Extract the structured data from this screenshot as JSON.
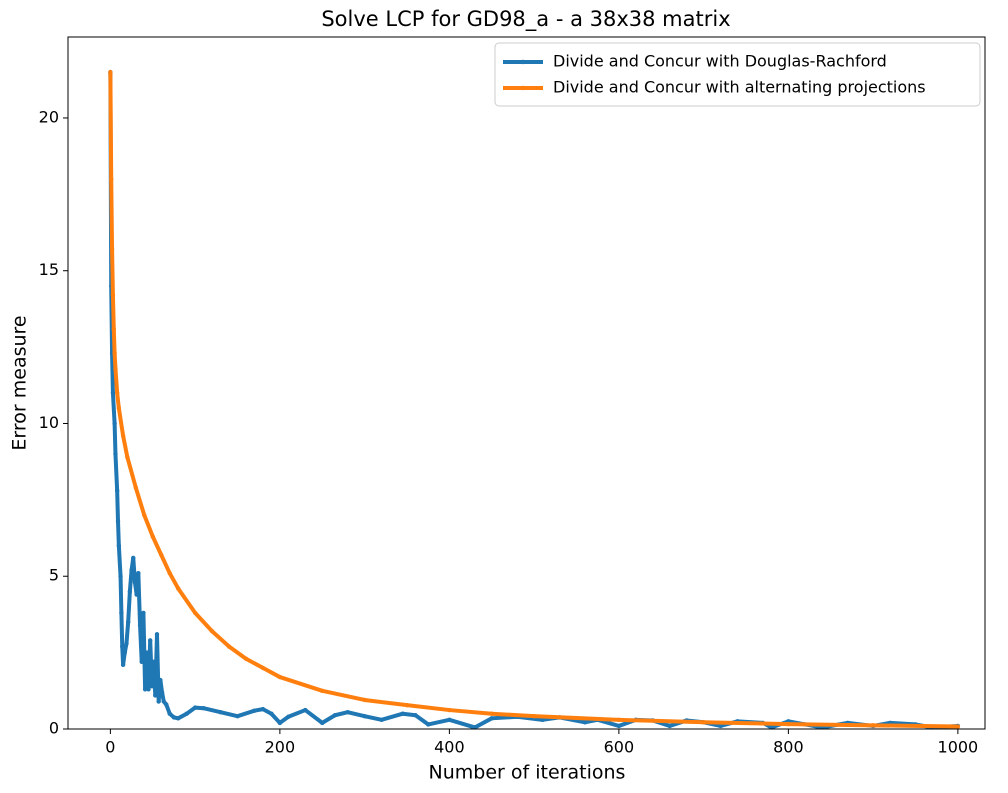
{
  "chart_data": {
    "type": "line",
    "title": "Solve LCP for GD98_a - a 38x38 matrix",
    "x_label": "Number of iterations",
    "y_label": "Error measure",
    "xlim": [
      -50,
      1032
    ],
    "ylim": [
      0,
      22.65
    ],
    "xticks": [
      0,
      200,
      400,
      600,
      800,
      1000
    ],
    "yticks": [
      0,
      5,
      10,
      15,
      20
    ],
    "legend": "upper right",
    "series": [
      {
        "name": "Divide and Concur with Douglas-Rachford",
        "color": "#1f77b4",
        "x": [
          0,
          1,
          2,
          3,
          5,
          6,
          8,
          9,
          10,
          12,
          13,
          14,
          15,
          17,
          19,
          21,
          23,
          25,
          27,
          29,
          31,
          33,
          35,
          37,
          39,
          41,
          43,
          45,
          47,
          49,
          51,
          53,
          55,
          57,
          59,
          61,
          63,
          66,
          70,
          75,
          80,
          90,
          100,
          110,
          130,
          150,
          170,
          180,
          190,
          200,
          210,
          230,
          250,
          265,
          280,
          300,
          320,
          345,
          360,
          375,
          400,
          430,
          450,
          480,
          510,
          530,
          560,
          575,
          600,
          620,
          640,
          660,
          680,
          700,
          720,
          740,
          770,
          780,
          800,
          820,
          840,
          870,
          900,
          920,
          950,
          970,
          1000
        ],
        "values": [
          21.5,
          14.5,
          12.3,
          11,
          10,
          9,
          7.8,
          6.8,
          6,
          5,
          3.8,
          2.7,
          2.1,
          2.5,
          2.8,
          3.5,
          4.5,
          5.2,
          5.6,
          4.8,
          4.4,
          5.1,
          3.4,
          2.2,
          3.8,
          1.3,
          2.5,
          1.3,
          2.9,
          1.4,
          2.2,
          1.1,
          3.1,
          0.9,
          1.6,
          1.2,
          0.9,
          0.8,
          0.5,
          0.38,
          0.35,
          0.5,
          0.7,
          0.68,
          0.55,
          0.42,
          0.6,
          0.65,
          0.5,
          0.2,
          0.4,
          0.62,
          0.2,
          0.45,
          0.55,
          0.42,
          0.3,
          0.5,
          0.45,
          0.15,
          0.3,
          0.05,
          0.35,
          0.4,
          0.3,
          0.38,
          0.22,
          0.3,
          0.1,
          0.3,
          0.28,
          0.1,
          0.28,
          0.22,
          0.1,
          0.25,
          0.2,
          0.05,
          0.25,
          0.15,
          0.05,
          0.2,
          0.1,
          0.2,
          0.15,
          0.05,
          0.1
        ]
      },
      {
        "name": "Divide and Concur with alternating projections",
        "color": "#ff7f0e",
        "x": [
          0,
          1,
          2,
          3,
          4,
          5,
          6,
          8,
          10,
          15,
          20,
          30,
          40,
          50,
          60,
          70,
          80,
          100,
          120,
          140,
          160,
          180,
          200,
          250,
          300,
          350,
          400,
          450,
          500,
          600,
          700,
          800,
          900,
          1000
        ],
        "values": [
          21.5,
          18,
          15.7,
          14.2,
          13.1,
          12.3,
          11.8,
          11,
          10.5,
          9.6,
          8.9,
          7.9,
          7.0,
          6.3,
          5.7,
          5.1,
          4.6,
          3.8,
          3.2,
          2.7,
          2.3,
          2.0,
          1.7,
          1.25,
          0.95,
          0.78,
          0.62,
          0.5,
          0.42,
          0.3,
          0.22,
          0.16,
          0.12,
          0.08
        ]
      }
    ]
  }
}
